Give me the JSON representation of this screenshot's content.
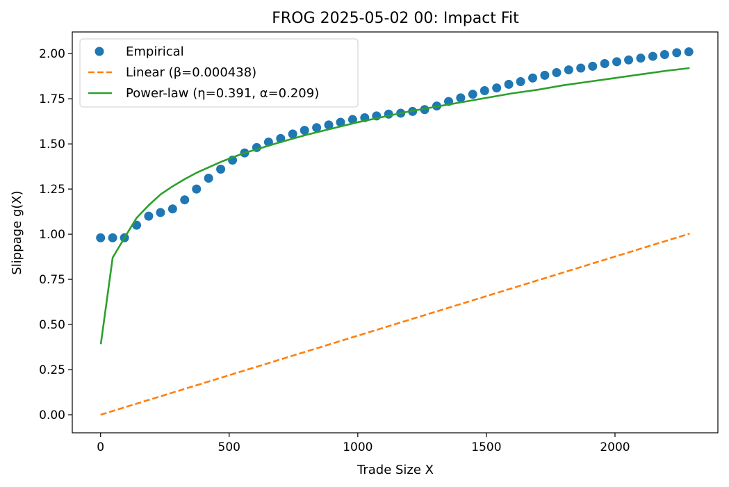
{
  "chart_data": {
    "type": "line",
    "title": "FROG 2025-05-02 00: Impact Fit",
    "xlabel": "Trade Size X",
    "ylabel": "Slippage g(X)",
    "xlim": [
      -110,
      2400
    ],
    "ylim": [
      -0.1,
      2.12
    ],
    "x_ticks": [
      0,
      500,
      1000,
      1500,
      2000
    ],
    "x_tick_labels": [
      "0",
      "500",
      "1000",
      "1500",
      "2000"
    ],
    "y_ticks": [
      0.0,
      0.25,
      0.5,
      0.75,
      1.0,
      1.25,
      1.5,
      1.75,
      2.0
    ],
    "y_tick_labels": [
      "0.00",
      "0.25",
      "0.50",
      "0.75",
      "1.00",
      "1.25",
      "1.50",
      "1.75",
      "2.00"
    ],
    "grid": false,
    "legend_position": "top-left",
    "series": [
      {
        "name": "Empirical",
        "kind": "markers",
        "color": "#1f77b4",
        "x": [
          0,
          47,
          93,
          140,
          187,
          233,
          280,
          327,
          373,
          420,
          467,
          513,
          560,
          607,
          653,
          700,
          747,
          793,
          840,
          887,
          933,
          980,
          1027,
          1073,
          1120,
          1167,
          1213,
          1260,
          1307,
          1353,
          1400,
          1447,
          1493,
          1540,
          1587,
          1633,
          1680,
          1727,
          1773,
          1820,
          1867,
          1913,
          1960,
          2007,
          2053,
          2100,
          2147,
          2193,
          2240,
          2287
        ],
        "y": [
          0.98,
          0.98,
          0.98,
          1.05,
          1.1,
          1.12,
          1.14,
          1.19,
          1.25,
          1.31,
          1.36,
          1.41,
          1.45,
          1.48,
          1.51,
          1.53,
          1.555,
          1.575,
          1.59,
          1.605,
          1.62,
          1.635,
          1.645,
          1.655,
          1.665,
          1.67,
          1.68,
          1.69,
          1.71,
          1.735,
          1.755,
          1.775,
          1.795,
          1.81,
          1.83,
          1.845,
          1.865,
          1.88,
          1.895,
          1.91,
          1.92,
          1.93,
          1.945,
          1.955,
          1.965,
          1.975,
          1.985,
          1.995,
          2.005,
          2.01
        ]
      },
      {
        "name": "Linear (β=0.000438)",
        "kind": "dashed-line",
        "color": "#ff7f0e",
        "x": [
          0,
          2290
        ],
        "y": [
          0.0,
          1.003
        ]
      },
      {
        "name": "Power-law (η=0.391, α=0.209)",
        "kind": "line",
        "color": "#2ca02c",
        "x": [
          1,
          47,
          93,
          140,
          187,
          233,
          280,
          327,
          373,
          420,
          467,
          513,
          560,
          607,
          653,
          700,
          800,
          900,
          1000,
          1100,
          1200,
          1300,
          1400,
          1500,
          1600,
          1700,
          1800,
          1900,
          2000,
          2100,
          2200,
          2290
        ],
        "y": [
          0.391,
          0.87,
          0.98,
          1.09,
          1.16,
          1.22,
          1.265,
          1.305,
          1.34,
          1.37,
          1.4,
          1.425,
          1.45,
          1.47,
          1.49,
          1.51,
          1.55,
          1.585,
          1.62,
          1.65,
          1.68,
          1.705,
          1.73,
          1.755,
          1.78,
          1.8,
          1.825,
          1.845,
          1.865,
          1.885,
          1.905,
          1.92
        ]
      }
    ]
  }
}
